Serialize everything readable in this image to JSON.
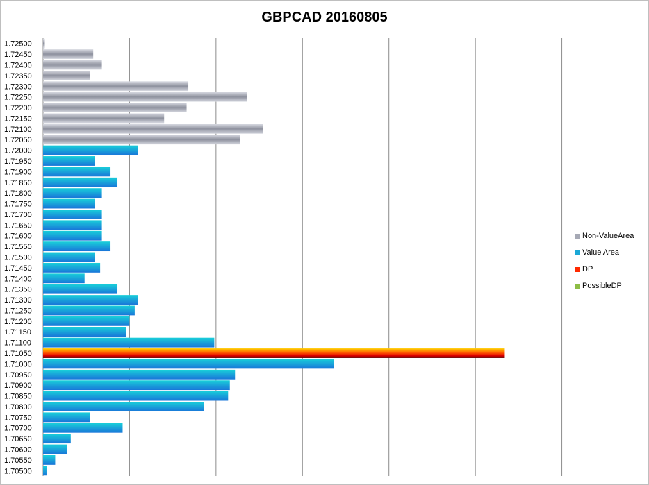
{
  "chart_data": {
    "type": "bar",
    "orientation": "horizontal",
    "title": "GBPCAD 20160805",
    "xlim": [
      0,
      350
    ],
    "grid": true,
    "legend_position": "right",
    "legend": [
      {
        "name": "Non-ValueArea",
        "color": "#a6a9b5"
      },
      {
        "name": "Value Area",
        "color": "#1ba8d6"
      },
      {
        "name": "DP",
        "color": "#ff2a00"
      },
      {
        "name": "PossibleDP",
        "color": "#8dbd45"
      }
    ],
    "categories": [
      "1.72500",
      "1.72450",
      "1.72400",
      "1.72350",
      "1.72300",
      "1.72250",
      "1.72200",
      "1.72150",
      "1.72100",
      "1.72050",
      "1.72000",
      "1.71950",
      "1.71900",
      "1.71850",
      "1.71800",
      "1.71750",
      "1.71700",
      "1.71650",
      "1.71600",
      "1.71550",
      "1.71500",
      "1.71450",
      "1.71400",
      "1.71350",
      "1.71300",
      "1.71250",
      "1.71200",
      "1.71150",
      "1.71100",
      "1.71050",
      "1.71000",
      "1.70950",
      "1.70900",
      "1.70850",
      "1.70800",
      "1.70750",
      "1.70700",
      "1.70650",
      "1.70600",
      "1.70550",
      "1.70500"
    ],
    "series": [
      {
        "name": "Non-ValueArea",
        "values": [
          1,
          29,
          34,
          27,
          84,
          118,
          83,
          70,
          127,
          114,
          0,
          0,
          0,
          0,
          0,
          0,
          0,
          0,
          0,
          0,
          0,
          0,
          0,
          0,
          0,
          0,
          0,
          0,
          0,
          0,
          0,
          0,
          0,
          0,
          0,
          0,
          0,
          0,
          0,
          0,
          0
        ]
      },
      {
        "name": "Value Area",
        "values": [
          0,
          0,
          0,
          0,
          0,
          0,
          0,
          0,
          0,
          0,
          55,
          30,
          39,
          43,
          34,
          30,
          34,
          34,
          34,
          39,
          30,
          33,
          24,
          43,
          55,
          53,
          50,
          48,
          99,
          0,
          168,
          111,
          108,
          107,
          93,
          27,
          46,
          16,
          14,
          7,
          2
        ]
      },
      {
        "name": "DP",
        "values": [
          0,
          0,
          0,
          0,
          0,
          0,
          0,
          0,
          0,
          0,
          0,
          0,
          0,
          0,
          0,
          0,
          0,
          0,
          0,
          0,
          0,
          0,
          0,
          0,
          0,
          0,
          0,
          0,
          0,
          267,
          0,
          0,
          0,
          0,
          0,
          0,
          0,
          0,
          0,
          0,
          0
        ]
      },
      {
        "name": "PossibleDP",
        "values": [
          0,
          0,
          0,
          0,
          0,
          0,
          0,
          0,
          0,
          0,
          0,
          0,
          0,
          0,
          0,
          0,
          0,
          0,
          0,
          0,
          0,
          0,
          0,
          0,
          0,
          0,
          0,
          0,
          0,
          0,
          0,
          0,
          0,
          0,
          0,
          0,
          0,
          0,
          0,
          0,
          0
        ]
      }
    ]
  }
}
